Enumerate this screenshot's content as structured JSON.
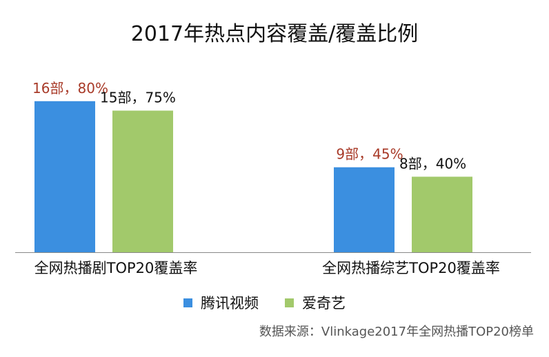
{
  "chart_data": {
    "type": "bar",
    "title": "2017年热点内容覆盖/覆盖比例",
    "categories": [
      "全网热播剧TOP20覆盖率",
      "全网热播综艺TOP20覆盖率"
    ],
    "ylim": [
      0,
      100
    ],
    "grid": false,
    "legend_position": "bottom",
    "series": [
      {
        "name": "腾讯视频",
        "color": "#3b8fe0",
        "label_color": "#a83a28",
        "values": [
          80,
          45
        ],
        "labels": [
          "16部，80%",
          "9部，45%"
        ]
      },
      {
        "name": "爱奇艺",
        "color": "#a2c96b",
        "label_color": "#111111",
        "values": [
          75,
          40
        ],
        "labels": [
          "15部，75%",
          "8部，40%"
        ]
      }
    ]
  },
  "source": "数据来源：Vlinkage2017年全网热播TOP20榜单"
}
